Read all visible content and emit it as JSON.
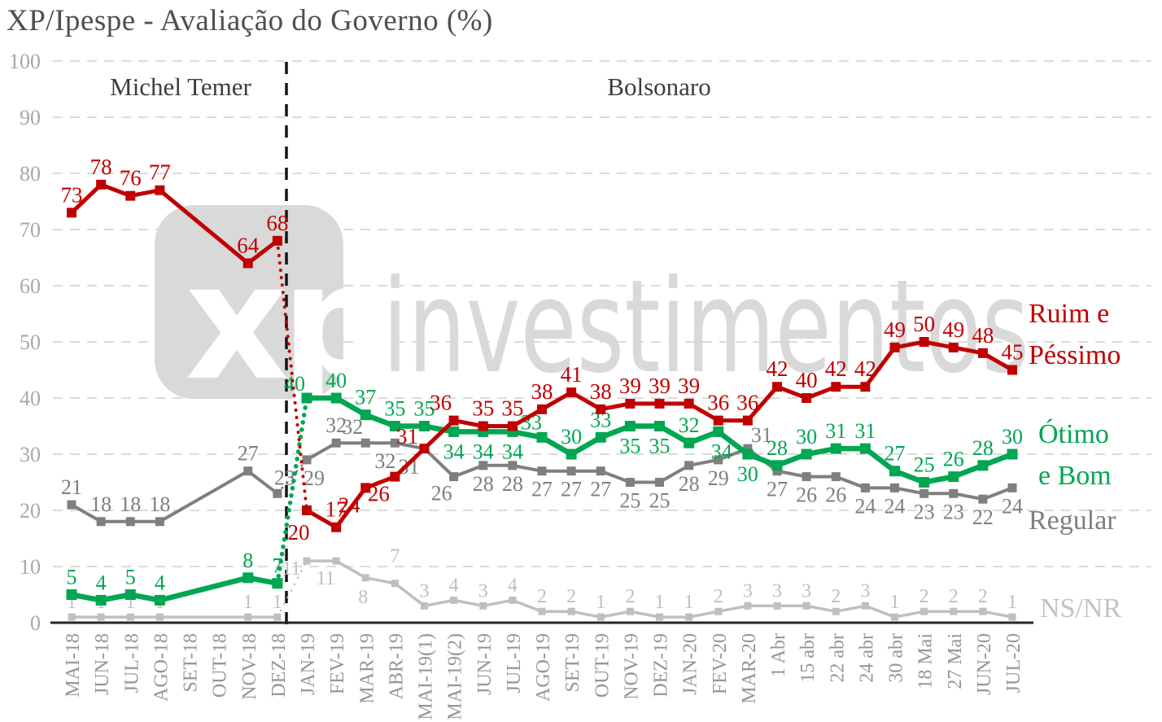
{
  "title": "XP/Ipespe - Avaliação do Governo (%)",
  "periods": [
    {
      "label": "Michel Temer"
    },
    {
      "label": "Bolsonaro"
    }
  ],
  "watermark": {
    "logo": "xp",
    "text": "investimentos"
  },
  "legend": {
    "items": [
      {
        "name": "ruim-e-pessimo",
        "lines": [
          "Ruim e",
          "Péssimo"
        ],
        "color": "#c00000"
      },
      {
        "name": "otimo-e-bom",
        "lines": [
          "Ótimo",
          "e Bom"
        ],
        "color": "#00a651"
      },
      {
        "name": "regular",
        "lines": [
          "Regular"
        ],
        "color": "#7f7f7f"
      },
      {
        "name": "ns-nr",
        "lines": [
          "NS/NR"
        ],
        "color": "#bfbfbf"
      }
    ]
  },
  "chart_data": {
    "type": "line",
    "title": "XP/Ipespe - Avaliação do Governo (%)",
    "xlabel": "",
    "ylabel": "",
    "ylim": [
      0,
      100
    ],
    "yticks": [
      100,
      90,
      80,
      70,
      60,
      50,
      40,
      30,
      20,
      10,
      0
    ],
    "grid": true,
    "legend_position": "right",
    "divider_after_index": 7,
    "categories": [
      "MAI-18",
      "JUN-18",
      "JUL-18",
      "AGO-18",
      "SET-18",
      "OUT-18",
      "NOV-18",
      "DEZ-18",
      "JAN-19",
      "FEV-19",
      "MAR-19",
      "ABR-19",
      "MAI-19(1)",
      "MAI-19(2)",
      "JUN-19",
      "JUL-19",
      "AGO-19",
      "SET-19",
      "OUT-19",
      "NOV-19",
      "DEZ-19",
      "JAN-20",
      "FEV-20",
      "MAR-20",
      "1 Abr",
      "15 abr",
      "22 abr",
      "24 abr",
      "30 abr",
      "18 Mai",
      "27 Mai",
      "JUN-20",
      "JUL-20"
    ],
    "series": [
      {
        "name": "Ruim e Péssimo",
        "color": "#c00000",
        "values": [
          73,
          78,
          76,
          77,
          null,
          null,
          64,
          68,
          20,
          17,
          24,
          26,
          31,
          36,
          35,
          35,
          38,
          41,
          38,
          39,
          39,
          39,
          36,
          36,
          42,
          40,
          42,
          42,
          49,
          50,
          49,
          48,
          45
        ]
      },
      {
        "name": "Ótimo e Bom",
        "color": "#00a651",
        "values": [
          5,
          4,
          5,
          4,
          null,
          null,
          8,
          7,
          40,
          40,
          37,
          35,
          35,
          34,
          34,
          34,
          33,
          30,
          33,
          35,
          35,
          32,
          34,
          30,
          28,
          30,
          31,
          31,
          27,
          25,
          26,
          28,
          30
        ]
      },
      {
        "name": "Regular",
        "color": "#7f7f7f",
        "values": [
          21,
          18,
          18,
          18,
          null,
          null,
          27,
          23,
          29,
          32,
          32,
          32,
          31,
          26,
          28,
          28,
          27,
          27,
          27,
          25,
          25,
          28,
          29,
          31,
          27,
          26,
          26,
          24,
          24,
          23,
          23,
          22,
          24
        ]
      },
      {
        "name": "NS/NR",
        "color": "#bfbfbf",
        "values": [
          1,
          1,
          1,
          1,
          null,
          null,
          1,
          1,
          11,
          11,
          8,
          7,
          3,
          4,
          3,
          4,
          2,
          2,
          1,
          2,
          1,
          1,
          2,
          3,
          3,
          3,
          2,
          3,
          1,
          2,
          2,
          2,
          1
        ]
      }
    ]
  }
}
